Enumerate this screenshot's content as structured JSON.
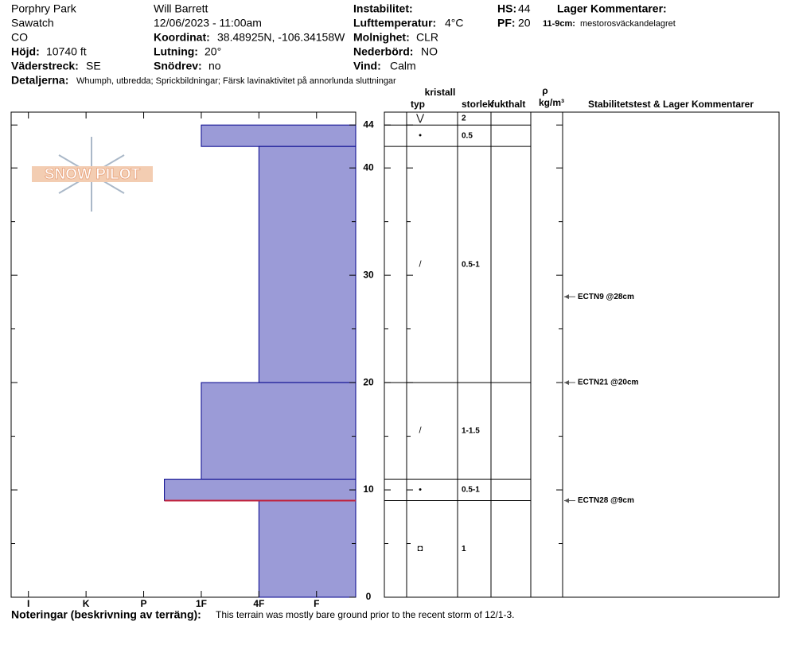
{
  "header": {
    "site": [
      "Porphry Park",
      "Sawatch",
      "CO"
    ],
    "elevation": {
      "label": "Höjd:",
      "value": "10740 ft"
    },
    "aspect": {
      "label": "Väderstreck:",
      "value": "SE"
    },
    "observer": "Will  Barrett",
    "datetime": "12/06/2023 - 11:00am",
    "coordinates": {
      "label": "Koordinat:",
      "value": "38.48925N, -106.34158W"
    },
    "slope": {
      "label": "Lutning:",
      "value": "20°"
    },
    "wind_loading": {
      "label": "Snödrev:",
      "value": "no"
    },
    "instability": {
      "label": "Instabilitet:"
    },
    "air_temp": {
      "label": "Lufttemperatur:",
      "value": "4°C"
    },
    "sky": {
      "label": "Molnighet:",
      "value": "CLR"
    },
    "precip": {
      "label": "Nederbörd:",
      "value": "NO"
    },
    "wind": {
      "label": "Vind:",
      "value": "Calm"
    },
    "hs": {
      "label": "HS:",
      "value": "44"
    },
    "pf": {
      "label": "PF:",
      "value": "20"
    },
    "layer_comments": {
      "label": "Lager Kommentarer:",
      "entries": [
        {
          "label": "11-9cm:",
          "value": "mestorosväckandelagret"
        }
      ]
    },
    "details": {
      "label": "Detaljerna:",
      "value": "Whumph, utbredda;  Sprickbildningar;  Färsk lavinaktivitet på annorlunda sluttningar"
    }
  },
  "logo": "SNOW PILOT",
  "chart_data": {
    "type": "snow-profile",
    "ylim": [
      0,
      45.2
    ],
    "yticks": [
      0,
      10,
      20,
      30,
      40,
      44
    ],
    "minor_yticks": [
      5,
      15,
      25,
      35
    ],
    "xlim": [
      0.32,
      6.3
    ],
    "xticks": [
      {
        "value": 6,
        "label": "I"
      },
      {
        "value": 5,
        "label": "K"
      },
      {
        "value": 4,
        "label": "P"
      },
      {
        "value": 3,
        "label": "1F"
      },
      {
        "value": 2,
        "label": "4F"
      },
      {
        "value": 1,
        "label": "F"
      }
    ],
    "color": "#9b9bd7",
    "critical_depth": 9,
    "critical_color": "#c0203a",
    "surface": {
      "grain": "⋁",
      "size": "2"
    },
    "layers": [
      {
        "top": 44,
        "bottom": 42,
        "hardness": 3,
        "grain": "•",
        "size": "0.5"
      },
      {
        "top": 42,
        "bottom": 20,
        "hardness": 2,
        "grain": "/",
        "size": "0.5-1"
      },
      {
        "top": 20,
        "bottom": 11,
        "hardness": 3,
        "grain": "/",
        "size": "1-1.5"
      },
      {
        "top": 11,
        "bottom": 9,
        "hardness": 3.64,
        "grain": "•",
        "size": "0.5-1"
      },
      {
        "top": 9,
        "bottom": 0,
        "hardness": 2,
        "grain": "◘",
        "size": "1"
      }
    ],
    "table_headers": {
      "crystal": "kristall",
      "type": "typ",
      "size": "storlek",
      "moisture": "fukthalt",
      "rho": "ρ",
      "density": "kg/m³",
      "stability": "Stabilitetstest & Lager Kommentarer"
    },
    "tests": [
      {
        "depth": 28,
        "label": "ECTN9 @28cm"
      },
      {
        "depth": 20,
        "label": "ECTN21 @20cm"
      },
      {
        "depth": 9,
        "label": "ECTN28 @9cm"
      }
    ]
  },
  "notes": {
    "label": "Noteringar (beskrivning av terräng):",
    "value": "This terrain was mostly bare ground prior to the recent storm of 12/1-3."
  }
}
